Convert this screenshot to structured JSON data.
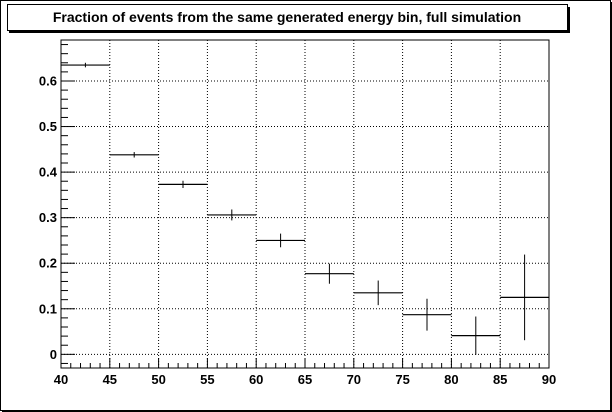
{
  "chart_data": {
    "type": "histogram",
    "title": "Fraction of events from the same generated energy bin, full simulation",
    "xlabel": "",
    "ylabel": "",
    "xlim": [
      40,
      90
    ],
    "ylim": [
      -0.03,
      0.69
    ],
    "grid": true,
    "legend": "none",
    "colors": {
      "background": "#ffffff",
      "frame": "#000000",
      "grid": "#000000",
      "series": "#000000",
      "title_box": "#ffffff"
    },
    "x_ticks": [
      {
        "value": 40,
        "label": "40"
      },
      {
        "value": 45,
        "label": "45"
      },
      {
        "value": 50,
        "label": "50"
      },
      {
        "value": 55,
        "label": "55"
      },
      {
        "value": 60,
        "label": "60"
      },
      {
        "value": 65,
        "label": "65"
      },
      {
        "value": 70,
        "label": "70"
      },
      {
        "value": 75,
        "label": "75"
      },
      {
        "value": 80,
        "label": "80"
      },
      {
        "value": 85,
        "label": "85"
      },
      {
        "value": 90,
        "label": "90"
      }
    ],
    "y_ticks": [
      {
        "value": 0,
        "label": "0"
      },
      {
        "value": 0.1,
        "label": "0.1"
      },
      {
        "value": 0.2,
        "label": "0.2"
      },
      {
        "value": 0.3,
        "label": "0.3"
      },
      {
        "value": 0.4,
        "label": "0.4"
      },
      {
        "value": 0.5,
        "label": "0.5"
      },
      {
        "value": 0.6,
        "label": "0.6"
      }
    ],
    "bins": [
      {
        "x_low": 40,
        "x_high": 45,
        "y": 0.635,
        "err": 0.005
      },
      {
        "x_low": 45,
        "x_high": 50,
        "y": 0.438,
        "err": 0.006
      },
      {
        "x_low": 50,
        "x_high": 55,
        "y": 0.373,
        "err": 0.008
      },
      {
        "x_low": 55,
        "x_high": 60,
        "y": 0.306,
        "err": 0.012
      },
      {
        "x_low": 60,
        "x_high": 65,
        "y": 0.25,
        "err": 0.015
      },
      {
        "x_low": 65,
        "x_high": 70,
        "y": 0.177,
        "err": 0.022
      },
      {
        "x_low": 70,
        "x_high": 75,
        "y": 0.135,
        "err": 0.027
      },
      {
        "x_low": 75,
        "x_high": 80,
        "y": 0.087,
        "err": 0.035
      },
      {
        "x_low": 80,
        "x_high": 85,
        "y": 0.041,
        "err": 0.042
      },
      {
        "x_low": 85,
        "x_high": 90,
        "y": 0.125,
        "err": 0.094
      }
    ]
  }
}
